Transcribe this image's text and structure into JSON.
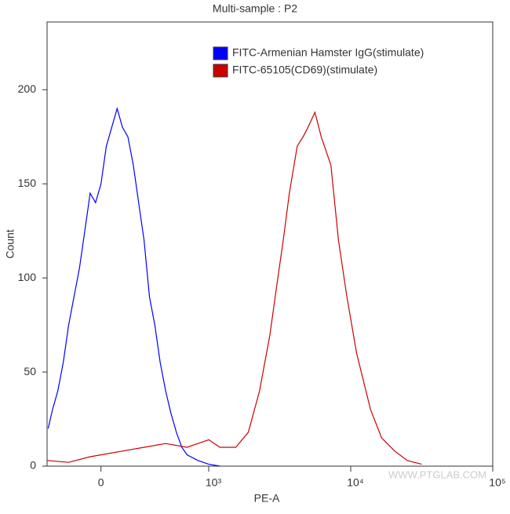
{
  "chart_data": {
    "type": "histogram-line",
    "title": "Multi-sample : P2",
    "xlabel": "PE-A",
    "ylabel": "Count",
    "watermark": "WWW.PTGLAB.COM",
    "xscale": "biexponential",
    "xlim": [
      -500,
      100000
    ],
    "xticks": [
      0,
      {
        "value": 1000,
        "label": "10³"
      },
      {
        "value": 10000,
        "label": "10⁴"
      },
      {
        "value": 100000,
        "label": "10⁵"
      }
    ],
    "ylim": [
      0,
      236
    ],
    "yticks": [
      0,
      50,
      100,
      150,
      200
    ],
    "legend": "upper right",
    "series": [
      {
        "name": "FITC-Armenian Hamster IgG(stimulate)",
        "color": "#0000ff",
        "x": [
          -490,
          -450,
          -400,
          -350,
          -300,
          -250,
          -200,
          -150,
          -100,
          -50,
          0,
          50,
          100,
          150,
          200,
          250,
          300,
          350,
          400,
          450,
          500,
          550,
          600,
          650,
          700,
          750,
          800,
          900,
          1000,
          1200
        ],
        "values": [
          20,
          30,
          40,
          55,
          75,
          90,
          105,
          125,
          145,
          140,
          150,
          170,
          180,
          190,
          180,
          175,
          160,
          140,
          120,
          90,
          75,
          55,
          40,
          28,
          18,
          10,
          6,
          3,
          1,
          0
        ]
      },
      {
        "name": "FITC-65105(CD69)(stimulate)",
        "color": "#cc0000",
        "x": [
          -500,
          -300,
          -100,
          0,
          200,
          400,
          600,
          800,
          1000,
          1200,
          1550,
          1900,
          2280,
          2700,
          3000,
          3350,
          3700,
          4200,
          4620,
          5000,
          5600,
          6200,
          7250,
          8200,
          9400,
          11000,
          13800,
          16500,
          20400,
          25000,
          31600
        ],
        "values": [
          3,
          2,
          5,
          6,
          8,
          10,
          12,
          10,
          14,
          10,
          10,
          18,
          40,
          70,
          95,
          120,
          145,
          170,
          175,
          180,
          188,
          175,
          160,
          120,
          90,
          60,
          30,
          15,
          8,
          3,
          1
        ]
      }
    ]
  }
}
